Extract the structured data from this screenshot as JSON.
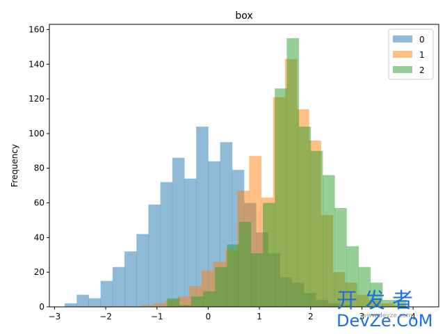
{
  "chart_data": {
    "type": "histogram",
    "title": "box",
    "xlabel": "",
    "ylabel": "Frequency",
    "xlim": [
      -3.1,
      4.5
    ],
    "ylim": [
      0,
      163
    ],
    "xticks": [
      -3,
      -2,
      -1,
      0,
      1,
      2,
      3,
      4
    ],
    "yticks": [
      0,
      20,
      40,
      60,
      80,
      100,
      120,
      140,
      160
    ],
    "grid": false,
    "legend_position": "top-right",
    "bin_width": 0.2333,
    "series": [
      {
        "name": "0",
        "color": "#1f77b4",
        "opacity": 0.5,
        "bin_start": -2.8,
        "counts": [
          2,
          7,
          5,
          15,
          23,
          32,
          42,
          59,
          72,
          86,
          74,
          104,
          84,
          95,
          79,
          60,
          43,
          31,
          17,
          14,
          8,
          4,
          2,
          1
        ]
      },
      {
        "name": "1",
        "color": "#ff7f0e",
        "opacity": 0.5,
        "bin_start": -2.0,
        "counts": [
          0,
          0,
          0,
          1,
          2,
          4,
          6,
          12,
          21,
          26,
          33,
          67,
          87,
          63,
          121,
          143,
          114,
          96,
          53,
          20,
          14,
          7,
          4,
          2,
          1
        ]
      },
      {
        "name": "2",
        "color": "#2ca02c",
        "opacity": 0.5,
        "bin_start": -0.8,
        "counts": [
          5,
          1,
          6,
          9,
          23,
          36,
          49,
          31,
          60,
          126,
          155,
          104,
          90,
          76,
          57,
          35,
          23,
          14,
          4,
          4
        ]
      }
    ]
  },
  "watermark": {
    "chinese": "开发者",
    "english": "DevZe.CoM",
    "small": "www.devze.com"
  }
}
